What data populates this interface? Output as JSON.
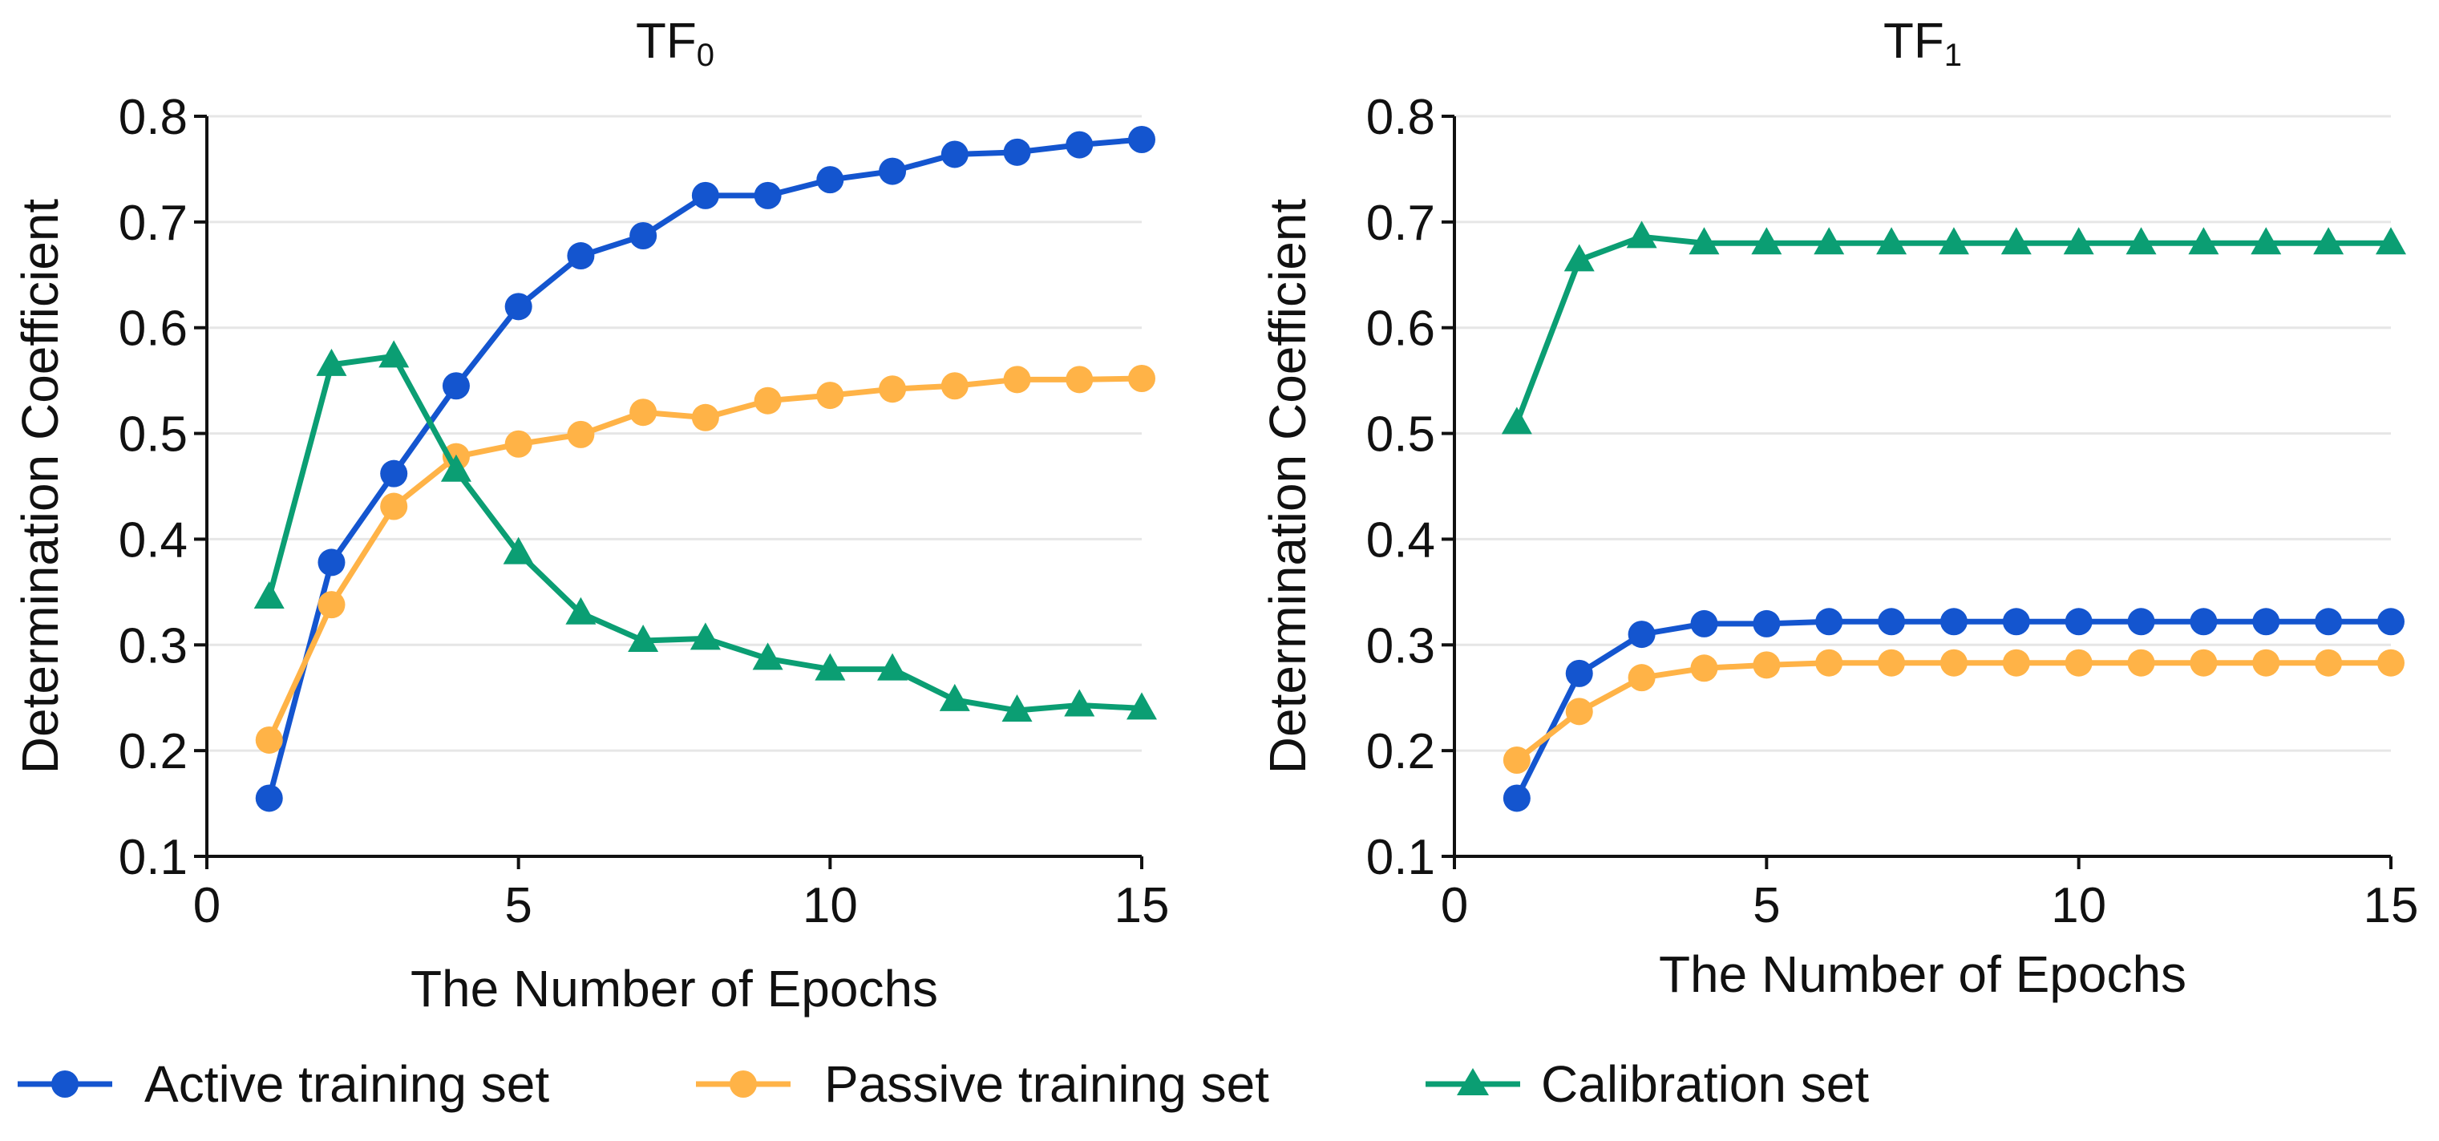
{
  "colors": {
    "active": "#1455cf",
    "passive": "#ffb347",
    "calibration": "#0b9e73",
    "grid": "#e6e6e6",
    "axis": "#111111"
  },
  "legend": [
    {
      "label": "Active training set",
      "series_key": "active",
      "marker": "circle"
    },
    {
      "label": "Passive training set",
      "series_key": "passive",
      "marker": "circle"
    },
    {
      "label": "Calibration set",
      "series_key": "calibration",
      "marker": "triangle"
    }
  ],
  "chart_data": [
    {
      "type": "line",
      "title": "TF",
      "title_subscript": "0",
      "xlabel": "The Number of Epochs",
      "ylabel": "Determination Coefficient",
      "xlim": [
        0,
        15
      ],
      "ylim": [
        0.1,
        0.8
      ],
      "xticks": [
        "0",
        "5",
        "10",
        "15"
      ],
      "yticks": [
        "0.1",
        "0.2",
        "0.3",
        "0.4",
        "0.5",
        "0.6",
        "0.7",
        "0.8"
      ],
      "grid": true,
      "x": [
        1,
        2,
        3,
        4,
        5,
        6,
        7,
        8,
        9,
        10,
        11,
        12,
        13,
        14,
        15
      ],
      "series": [
        {
          "name": "Active training set",
          "key": "active",
          "marker": "circle",
          "values": [
            0.155,
            0.378,
            0.462,
            0.545,
            0.62,
            0.668,
            0.687,
            0.725,
            0.725,
            0.74,
            0.748,
            0.764,
            0.766,
            0.773,
            0.778
          ]
        },
        {
          "name": "Passive training set",
          "key": "passive",
          "marker": "circle",
          "values": [
            0.21,
            0.338,
            0.431,
            0.478,
            0.49,
            0.499,
            0.52,
            0.515,
            0.531,
            0.536,
            0.542,
            0.545,
            0.551,
            0.551,
            0.552
          ]
        },
        {
          "name": "Calibration set",
          "key": "calibration",
          "marker": "triangle",
          "values": [
            0.345,
            0.565,
            0.573,
            0.465,
            0.387,
            0.33,
            0.304,
            0.306,
            0.287,
            0.277,
            0.277,
            0.248,
            0.238,
            0.243,
            0.24
          ]
        }
      ]
    },
    {
      "type": "line",
      "title": "TF",
      "title_subscript": "1",
      "xlabel": "The Number of Epochs",
      "ylabel": "Determination Coefficient",
      "xlim": [
        0,
        15
      ],
      "ylim": [
        0.1,
        0.8
      ],
      "xticks": [
        "0",
        "5",
        "10",
        "15"
      ],
      "yticks": [
        "0.1",
        "0.2",
        "0.3",
        "0.4",
        "0.5",
        "0.6",
        "0.7",
        "0.8"
      ],
      "grid": true,
      "x": [
        1,
        2,
        3,
        4,
        5,
        6,
        7,
        8,
        9,
        10,
        11,
        12,
        13,
        14,
        15
      ],
      "series": [
        {
          "name": "Active training set",
          "key": "active",
          "marker": "circle",
          "values": [
            0.155,
            0.273,
            0.31,
            0.32,
            0.32,
            0.322,
            0.322,
            0.322,
            0.322,
            0.322,
            0.322,
            0.322,
            0.322,
            0.322,
            0.322
          ]
        },
        {
          "name": "Passive training set",
          "key": "passive",
          "marker": "circle",
          "values": [
            0.191,
            0.237,
            0.269,
            0.278,
            0.281,
            0.283,
            0.283,
            0.283,
            0.283,
            0.283,
            0.283,
            0.283,
            0.283,
            0.283,
            0.283
          ]
        },
        {
          "name": "Calibration set",
          "key": "calibration",
          "marker": "triangle",
          "values": [
            0.51,
            0.664,
            0.686,
            0.68,
            0.68,
            0.68,
            0.68,
            0.68,
            0.68,
            0.68,
            0.68,
            0.68,
            0.68,
            0.68,
            0.68
          ]
        }
      ]
    }
  ]
}
